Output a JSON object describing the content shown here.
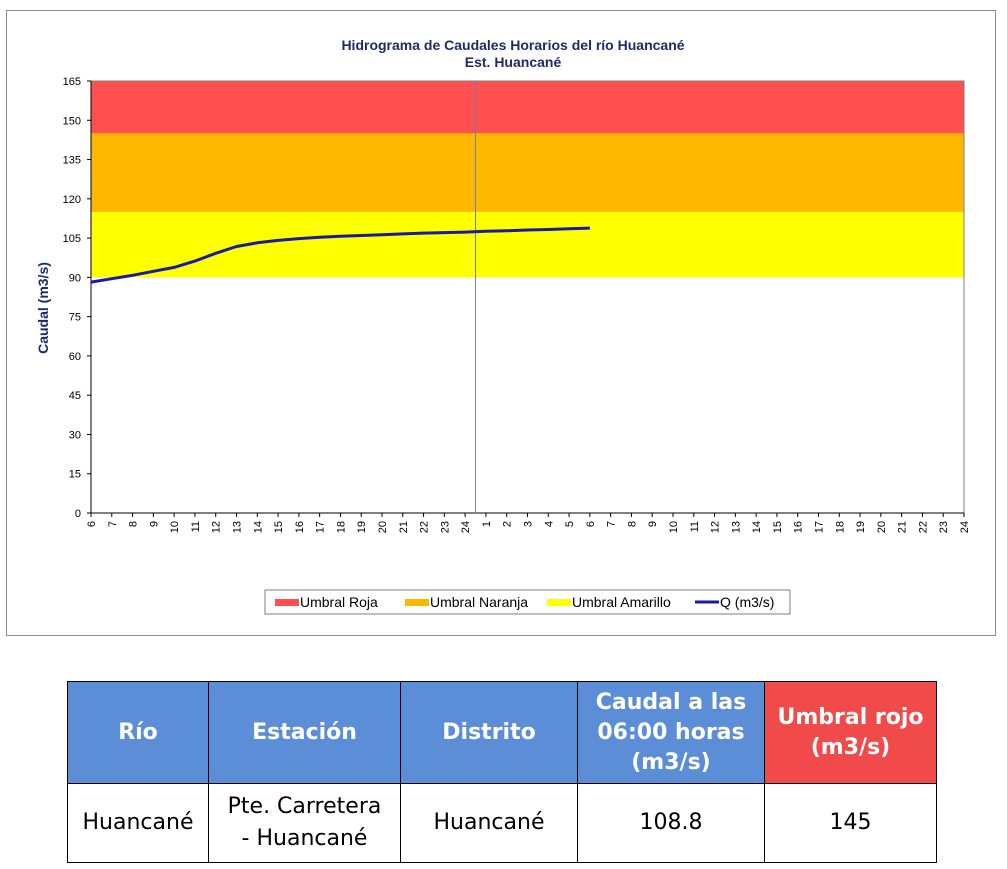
{
  "chart_data": {
    "type": "line",
    "title": "Hidrograma de Caudales Horarios del río Huancané",
    "subtitle": "Est. Huancané",
    "ylabel": "Caudal  (m3/s)",
    "xlabel": "",
    "ylim": [
      0,
      165
    ],
    "y_ticks": [
      0,
      15,
      30,
      45,
      60,
      75,
      90,
      105,
      120,
      135,
      150,
      165
    ],
    "x_tick_labels": [
      "6",
      "7",
      "8",
      "9",
      "10",
      "11",
      "12",
      "13",
      "14",
      "15",
      "16",
      "17",
      "18",
      "19",
      "20",
      "21",
      "22",
      "23",
      "24",
      "1",
      "2",
      "3",
      "4",
      "5",
      "6",
      "7",
      "8",
      "9",
      "10",
      "11",
      "12",
      "13",
      "14",
      "15",
      "16",
      "17",
      "18",
      "19",
      "20",
      "21",
      "22",
      "23",
      "24"
    ],
    "day_divider_after_tick": "24",
    "grid": false,
    "legend_position": "bottom",
    "bands": [
      {
        "name": "Umbral Roja",
        "from": 145,
        "to": 165,
        "color": "#ff4f4f"
      },
      {
        "name": "Umbral Naranja",
        "from": 115,
        "to": 145,
        "color": "#ffb700"
      },
      {
        "name": "Umbral Amarillo",
        "from": 90,
        "to": 115,
        "color": "#ffff00"
      }
    ],
    "series": [
      {
        "name": "Q (m3/s)",
        "color": "#1a1aa6",
        "x_index": [
          0,
          1,
          2,
          3,
          4,
          5,
          6,
          7,
          8,
          9,
          10,
          11,
          12,
          13,
          14,
          15,
          16,
          17,
          18,
          19,
          20,
          21,
          22,
          23,
          24
        ],
        "values": [
          88.2,
          89.5,
          90.8,
          92.3,
          93.8,
          96.2,
          99.2,
          101.8,
          103.2,
          104.1,
          104.8,
          105.3,
          105.7,
          106.0,
          106.3,
          106.6,
          106.9,
          107.1,
          107.3,
          107.6,
          107.8,
          108.1,
          108.3,
          108.6,
          108.8
        ]
      }
    ]
  },
  "table": {
    "headers": [
      "Río",
      "Estación",
      "Distrito",
      "Caudal a las 06:00 horas (m3/s)",
      "Umbral rojo (m3/s)"
    ],
    "row": {
      "rio": "Huancané",
      "estacion_line1": "Pte. Carretera",
      "estacion_line2": "- Huancané",
      "distrito": "Huancané",
      "caudal": "108.8",
      "umbral": "145"
    }
  }
}
